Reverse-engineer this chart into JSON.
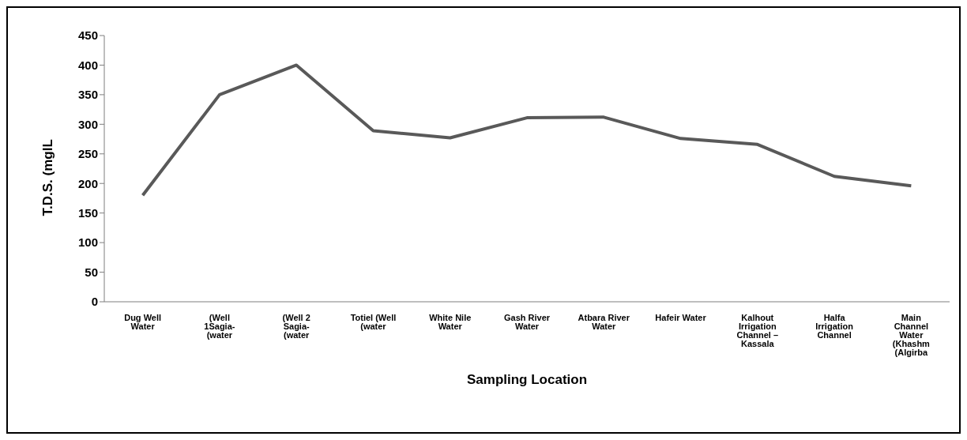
{
  "chart_data": {
    "type": "line",
    "xlabel": "Sampling Location",
    "ylabel": "T.D.S. (mglL",
    "categories": [
      "Dug Well Water",
      "(Well 1Sagia- (water",
      "(Well 2 Sagia- (water",
      "Totiel (Well (water",
      "White Nile Water",
      "Gash River Water",
      "Atbara River Water",
      "Hafeir Water",
      "Kalhout Irrigation Channel – Kassala",
      "Halfa Irrigation Channel",
      "Main Channel Water (Khashm (Algirba"
    ],
    "series": [
      {
        "color": "#595959",
        "values": [
          180,
          350,
          400,
          289,
          277,
          311,
          312,
          276,
          266,
          212,
          196
        ]
      }
    ],
    "ylim": [
      0,
      450
    ],
    "yticks": [
      0,
      50,
      100,
      150,
      200,
      250,
      300,
      350,
      400,
      450
    ],
    "grid": false,
    "legend": false,
    "marker": "none",
    "line_style": "solid"
  }
}
